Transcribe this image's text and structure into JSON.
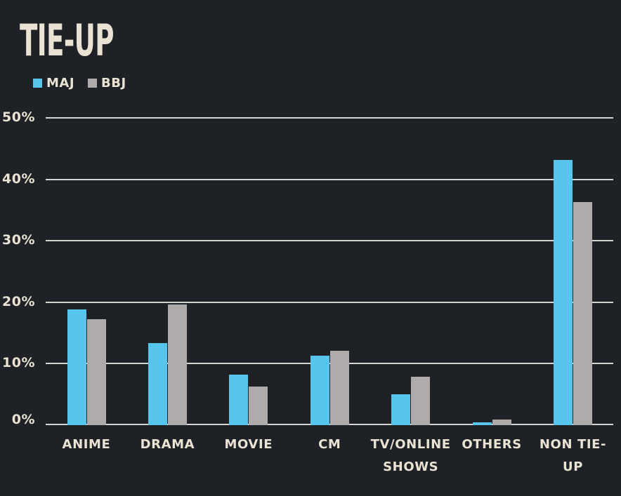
{
  "title": "TIE-UP",
  "colors": {
    "background": "#1e2126",
    "text": "#eae3d3",
    "gridline": "#d6d5d2",
    "maj": "#58c6ec",
    "bbj": "#aeabaa"
  },
  "legend": {
    "items": [
      {
        "label": "MAJ",
        "color": "#58c6ec"
      },
      {
        "label": "BBJ",
        "color": "#aeabaa"
      }
    ]
  },
  "y_axis": {
    "tick_labels": [
      "0%",
      "10%",
      "20%",
      "30%",
      "40%",
      "50%"
    ],
    "tick_values": [
      0,
      10,
      20,
      30,
      40,
      50
    ]
  },
  "x_axis": {
    "labels_display": [
      "ANIME",
      "DRAMA",
      "MOVIE",
      "CM",
      "TV/ONLINE\nSHOWS",
      "OTHERS",
      "NON TIE-\nUP"
    ]
  },
  "chart_data": {
    "type": "bar",
    "title": "TIE-UP",
    "categories": [
      "ANIME",
      "DRAMA",
      "MOVIE",
      "CM",
      "TV/ONLINE SHOWS",
      "OTHERS",
      "NON TIE-UP"
    ],
    "series": [
      {
        "name": "MAJ",
        "color": "#58c6ec",
        "values": [
          18.8,
          13.3,
          8.2,
          11.3,
          5.0,
          0.5,
          43.1
        ]
      },
      {
        "name": "BBJ",
        "color": "#aeabaa",
        "values": [
          17.2,
          19.6,
          6.3,
          12.1,
          7.9,
          0.9,
          36.3
        ]
      }
    ],
    "xlabel": "",
    "ylabel": "",
    "ylim": [
      0,
      50
    ],
    "ytick_step": 10,
    "grid": true,
    "legend_position": "top-left",
    "background": "dark"
  }
}
